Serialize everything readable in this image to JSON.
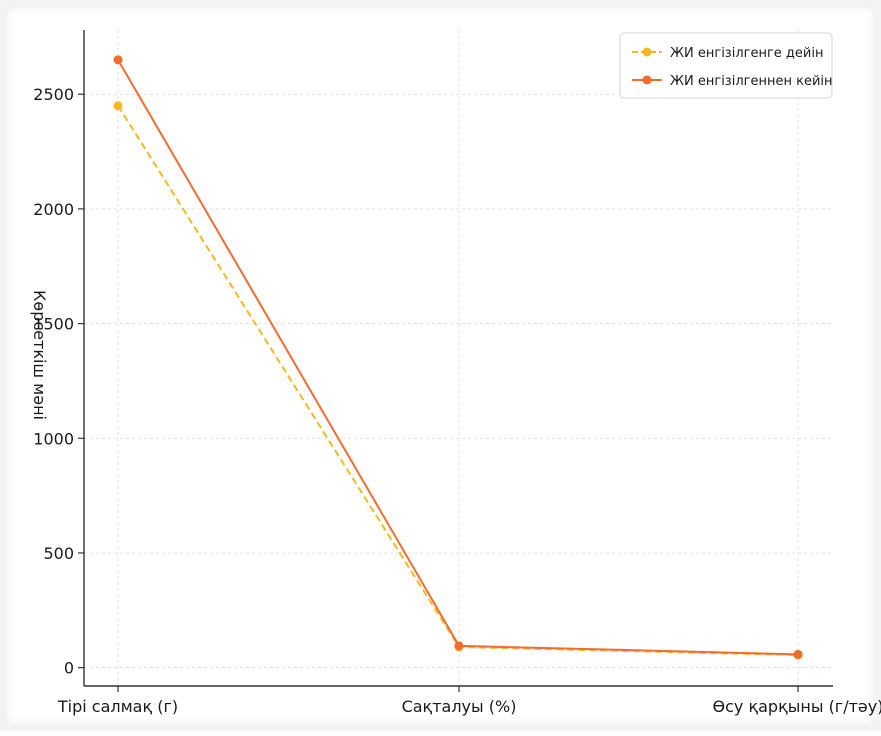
{
  "chart_data": {
    "type": "line",
    "title": "",
    "xlabel": "",
    "ylabel": "Көрсеткіш мәні",
    "categories": [
      "Тірі салмақ (г)",
      "Сақталуы (%)",
      "Өсу қарқыны (г/тәу)"
    ],
    "ylim": [
      -80,
      2780
    ],
    "yticks": [
      0,
      500,
      1000,
      1500,
      2000,
      2500
    ],
    "grid": true,
    "legend_position": "top-right",
    "series": [
      {
        "name": "ЖИ енгізілгенге дейін",
        "values": [
          2450,
          90,
          55
        ],
        "color": "#f5b820",
        "line_style": "dashed",
        "marker": "circle"
      },
      {
        "name": "ЖИ енгізілгеннен кейін",
        "values": [
          2650,
          95,
          58
        ],
        "color": "#ee6d2f",
        "line_style": "solid",
        "marker": "circle"
      }
    ]
  }
}
